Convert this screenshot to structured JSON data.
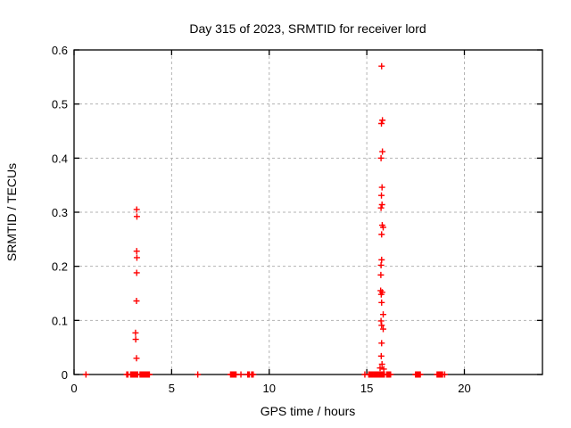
{
  "chart_data": {
    "type": "scatter",
    "title": "Day 315 of 2023, SRMTID for receiver lord",
    "xlabel": "GPS time / hours",
    "ylabel": "SRMTID / TECUs",
    "xlim": [
      0,
      24
    ],
    "ylim": [
      0,
      0.6
    ],
    "grid": true,
    "legend": "none",
    "colors": {
      "marker": "#ff0000",
      "grid": "#b3b3b3",
      "axis": "#000000",
      "background": "#ffffff"
    },
    "xticks": {
      "values": [
        0,
        5,
        10,
        15,
        20
      ],
      "labels": [
        "0",
        "5",
        "10",
        "15",
        "20"
      ]
    },
    "yticks": {
      "values": [
        0,
        0.1,
        0.2,
        0.3,
        0.4,
        0.5,
        0.6
      ],
      "labels": [
        "0",
        "0.1",
        "0.2",
        "0.3",
        "0.4",
        "0.5",
        "0.6"
      ]
    },
    "series": [
      {
        "name": "SRMTID",
        "marker": "plus",
        "color": "#ff0000",
        "points": [
          [
            3.21,
            0.305
          ],
          [
            3.22,
            0.292
          ],
          [
            3.21,
            0.228
          ],
          [
            3.22,
            0.216
          ],
          [
            3.21,
            0.188
          ],
          [
            3.2,
            0.136
          ],
          [
            3.15,
            0.077
          ],
          [
            3.16,
            0.065
          ],
          [
            3.2,
            0.03
          ],
          [
            15.76,
            0.57
          ],
          [
            15.8,
            0.47
          ],
          [
            15.75,
            0.464
          ],
          [
            15.8,
            0.412
          ],
          [
            15.73,
            0.4
          ],
          [
            15.78,
            0.346
          ],
          [
            15.75,
            0.331
          ],
          [
            15.78,
            0.314
          ],
          [
            15.73,
            0.308
          ],
          [
            15.79,
            0.276
          ],
          [
            15.84,
            0.272
          ],
          [
            15.76,
            0.259
          ],
          [
            15.76,
            0.212
          ],
          [
            15.73,
            0.202
          ],
          [
            15.72,
            0.184
          ],
          [
            15.71,
            0.155
          ],
          [
            15.79,
            0.152
          ],
          [
            15.74,
            0.148
          ],
          [
            15.76,
            0.133
          ],
          [
            15.84,
            0.111
          ],
          [
            15.73,
            0.099
          ],
          [
            15.76,
            0.091
          ],
          [
            15.84,
            0.084
          ],
          [
            15.76,
            0.058
          ],
          [
            15.74,
            0.034
          ],
          [
            15.78,
            0.019
          ],
          [
            15.68,
            0.012
          ],
          [
            15.87,
            0.01
          ]
        ],
        "baseline_points_x": [
          0.61,
          2.7,
          2.76,
          2.9,
          2.94,
          2.98,
          3.02,
          3.06,
          3.1,
          3.14,
          3.18,
          3.22,
          3.26,
          3.38,
          3.42,
          3.46,
          3.5,
          3.54,
          3.58,
          3.62,
          3.66,
          3.7,
          3.74,
          3.78,
          3.82,
          3.86,
          6.34,
          8.02,
          8.06,
          8.1,
          8.14,
          8.18,
          8.22,
          8.26,
          8.3,
          8.55,
          8.9,
          8.94,
          8.98,
          9.1,
          9.14,
          9.18,
          14.9,
          15.1,
          15.15,
          15.2,
          15.25,
          15.3,
          15.35,
          15.4,
          15.45,
          15.5,
          15.55,
          15.6,
          15.65,
          15.7,
          15.75,
          15.8,
          15.85,
          15.9,
          16.02,
          16.06,
          16.1,
          16.14,
          16.18,
          16.22,
          17.5,
          17.54,
          17.58,
          17.62,
          17.66,
          17.7,
          17.74,
          18.6,
          18.64,
          18.68,
          18.72,
          18.76,
          18.8,
          18.84,
          18.88,
          18.99
        ],
        "baseline_value": 0
      }
    ]
  }
}
